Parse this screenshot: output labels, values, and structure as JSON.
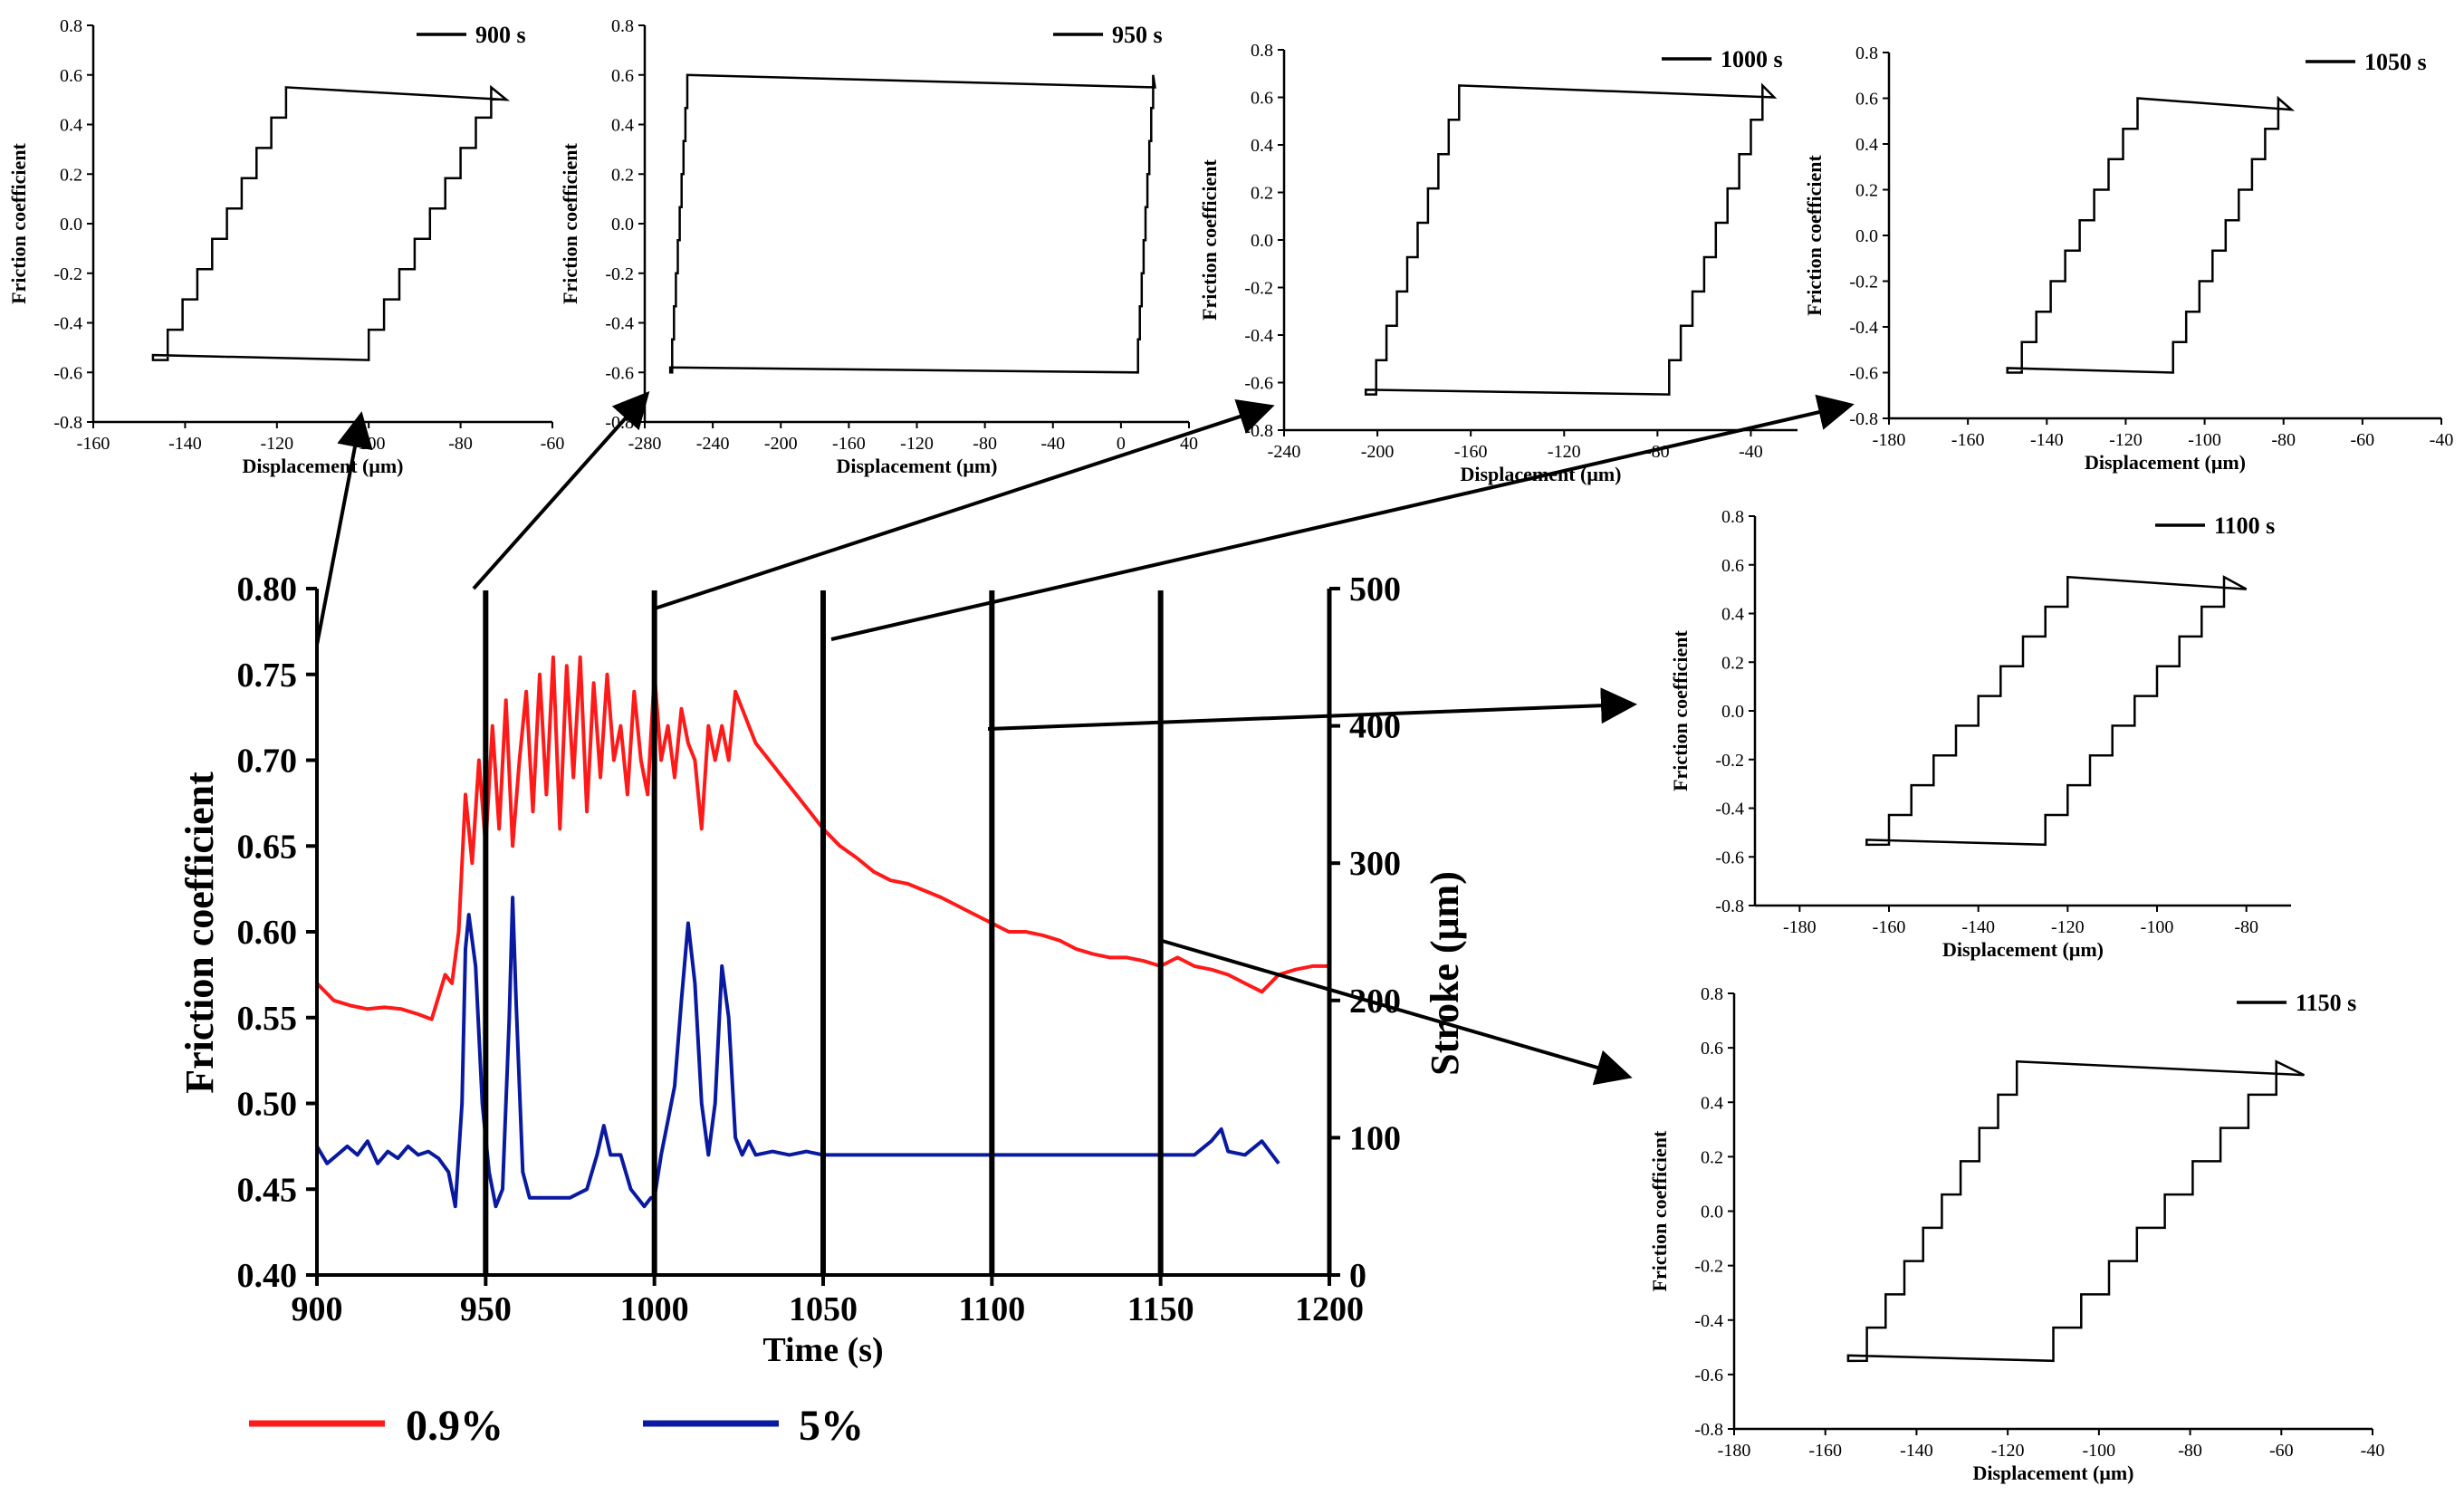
{
  "colors": {
    "series_09": "#ff1a1a",
    "series_5": "#0a1aa0",
    "axis": "#000000",
    "loop": "#000000"
  },
  "legend": [
    {
      "label": "0.9%",
      "color": "#ff1a1a"
    },
    {
      "label": "5%",
      "color": "#0a1aa0"
    }
  ],
  "chart_data": [
    {
      "type": "line",
      "id": "main",
      "title": "",
      "xlabel": "Time (s)",
      "ylabel": "Friction coefficient",
      "y2label": "Stroke (μm)",
      "xlim": [
        900,
        1200
      ],
      "ylim": [
        0.4,
        0.8
      ],
      "y2lim": [
        0,
        500
      ],
      "xticks": [
        "900",
        "950",
        "1000",
        "1050",
        "1100",
        "1150",
        "1200"
      ],
      "yticks": [
        "0.40",
        "0.45",
        "0.50",
        "0.55",
        "0.60",
        "0.65",
        "0.70",
        "0.75",
        "0.80"
      ],
      "y2ticks": [
        "0",
        "100",
        "200",
        "300",
        "400",
        "500"
      ],
      "markers": [
        950,
        1000,
        1050,
        1100,
        1150
      ],
      "series": [
        {
          "name": "0.9%",
          "color": "#ff1a1a",
          "x": [
            900,
            905,
            910,
            915,
            920,
            925,
            930,
            934,
            936,
            938,
            940,
            942,
            944,
            946,
            948,
            950,
            952,
            954,
            956,
            958,
            960,
            962,
            964,
            966,
            968,
            970,
            972,
            974,
            976,
            978,
            980,
            982,
            984,
            986,
            988,
            990,
            992,
            994,
            996,
            998,
            1000,
            1002,
            1004,
            1006,
            1008,
            1010,
            1012,
            1014,
            1016,
            1018,
            1020,
            1022,
            1024,
            1026,
            1028,
            1030,
            1034,
            1038,
            1042,
            1046,
            1050,
            1055,
            1060,
            1065,
            1070,
            1075,
            1080,
            1085,
            1090,
            1095,
            1100,
            1105,
            1110,
            1115,
            1120,
            1125,
            1130,
            1135,
            1140,
            1145,
            1150,
            1155,
            1160,
            1165,
            1170,
            1175,
            1180,
            1185,
            1190,
            1195,
            1200
          ],
          "y": [
            0.57,
            0.56,
            0.557,
            0.555,
            0.556,
            0.555,
            0.552,
            0.549,
            0.562,
            0.575,
            0.57,
            0.6,
            0.68,
            0.64,
            0.7,
            0.65,
            0.72,
            0.66,
            0.735,
            0.65,
            0.7,
            0.74,
            0.67,
            0.75,
            0.68,
            0.76,
            0.66,
            0.755,
            0.69,
            0.76,
            0.67,
            0.745,
            0.69,
            0.75,
            0.7,
            0.72,
            0.68,
            0.74,
            0.7,
            0.68,
            0.75,
            0.7,
            0.72,
            0.69,
            0.73,
            0.71,
            0.7,
            0.66,
            0.72,
            0.7,
            0.72,
            0.7,
            0.74,
            0.73,
            0.72,
            0.71,
            0.7,
            0.69,
            0.68,
            0.67,
            0.66,
            0.65,
            0.643,
            0.635,
            0.63,
            0.628,
            0.624,
            0.62,
            0.615,
            0.61,
            0.605,
            0.6,
            0.6,
            0.598,
            0.595,
            0.59,
            0.587,
            0.585,
            0.585,
            0.583,
            0.58,
            0.585,
            0.58,
            0.578,
            0.575,
            0.57,
            0.565,
            0.575,
            0.578,
            0.58,
            0.58
          ]
        },
        {
          "name": "5%",
          "color": "#0a1aa0",
          "x": [
            900,
            903,
            906,
            909,
            912,
            915,
            918,
            921,
            924,
            927,
            930,
            933,
            936,
            939,
            941,
            943,
            944,
            945,
            947,
            949,
            951,
            953,
            955,
            957,
            958,
            959,
            961,
            963,
            966,
            970,
            975,
            980,
            983,
            985,
            987,
            990,
            993,
            995,
            997,
            999,
            1000,
            1002,
            1004,
            1006,
            1008,
            1010,
            1012,
            1014,
            1016,
            1018,
            1020,
            1022,
            1024,
            1026,
            1028,
            1030,
            1035,
            1040,
            1045,
            1050,
            1060,
            1070,
            1080,
            1090,
            1100,
            1110,
            1120,
            1130,
            1140,
            1150,
            1160,
            1165,
            1168,
            1170,
            1175,
            1180,
            1185
          ],
          "y": [
            0.475,
            0.465,
            0.47,
            0.475,
            0.47,
            0.478,
            0.465,
            0.472,
            0.468,
            0.475,
            0.47,
            0.472,
            0.468,
            0.46,
            0.44,
            0.5,
            0.59,
            0.61,
            0.58,
            0.5,
            0.46,
            0.44,
            0.45,
            0.55,
            0.62,
            0.56,
            0.46,
            0.445,
            0.445,
            0.445,
            0.445,
            0.45,
            0.47,
            0.487,
            0.47,
            0.47,
            0.45,
            0.445,
            0.44,
            0.445,
            0.445,
            0.47,
            0.49,
            0.51,
            0.56,
            0.605,
            0.57,
            0.5,
            0.47,
            0.5,
            0.58,
            0.55,
            0.48,
            0.47,
            0.478,
            0.47,
            0.472,
            0.47,
            0.472,
            0.47,
            0.47,
            0.47,
            0.47,
            0.47,
            0.47,
            0.47,
            0.47,
            0.47,
            0.47,
            0.47,
            0.47,
            0.478,
            0.485,
            0.472,
            0.47,
            0.478,
            0.465
          ]
        }
      ]
    },
    {
      "type": "line",
      "id": "loop900",
      "legend": "900 s",
      "xlabel": "Displacement (μm)",
      "ylabel": "Friction coefficient",
      "xlim": [
        -160,
        -60
      ],
      "ylim": [
        -0.8,
        0.8
      ],
      "xticks": [
        "-160",
        "-140",
        "-120",
        "-100",
        "-80",
        "-60"
      ],
      "yticks": [
        "-0.8",
        "-0.6",
        "-0.4",
        "-0.2",
        "0.0",
        "0.2",
        "0.4",
        "0.6",
        "0.8"
      ],
      "loop": {
        "x_left_bottom": -147,
        "x_left_top": -118,
        "x_right_top": -70,
        "x_right_bottom": -100,
        "y_top": 0.55,
        "y_bottom": -0.55
      }
    },
    {
      "type": "line",
      "id": "loop950",
      "legend": "950 s",
      "xlabel": "Displacement (μm)",
      "ylabel": "Friction coefficient",
      "xlim": [
        -280,
        40
      ],
      "ylim": [
        -0.8,
        0.8
      ],
      "xticks": [
        "-280",
        "-240",
        "-200",
        "-160",
        "-120",
        "-80",
        "-40",
        "0",
        "40"
      ],
      "yticks": [
        "-0.8",
        "-0.6",
        "-0.4",
        "-0.2",
        "0.0",
        "0.2",
        "0.4",
        "0.6",
        "0.8"
      ],
      "loop": {
        "x_left_bottom": -265,
        "x_left_top": -255,
        "x_right_top": 20,
        "x_right_bottom": 10,
        "y_top": 0.6,
        "y_bottom": -0.6
      }
    },
    {
      "type": "line",
      "id": "loop1000",
      "legend": "1000 s",
      "xlabel": "Displacement (μm)",
      "ylabel": "Friction coefficient",
      "xlim": [
        -240,
        -20
      ],
      "ylim": [
        -0.8,
        0.8
      ],
      "xticks": [
        "-240",
        "-200",
        "-160",
        "-120",
        "-80",
        "-40"
      ],
      "yticks": [
        "-0.8",
        "-0.6",
        "-0.4",
        "-0.2",
        "0.0",
        "0.2",
        "0.4",
        "0.6",
        "0.8"
      ],
      "loop": {
        "x_left_bottom": -205,
        "x_left_top": -165,
        "x_right_top": -30,
        "x_right_bottom": -75,
        "y_top": 0.65,
        "y_bottom": -0.65
      }
    },
    {
      "type": "line",
      "id": "loop1050",
      "legend": "1050 s",
      "xlabel": "Displacement (μm)",
      "ylabel": "Friction coefficient",
      "xlim": [
        -180,
        -40
      ],
      "ylim": [
        -0.8,
        0.8
      ],
      "xticks": [
        "-180",
        "-160",
        "-140",
        "-120",
        "-100",
        "-80",
        "-60",
        "-40"
      ],
      "yticks": [
        "-0.8",
        "-0.6",
        "-0.4",
        "-0.2",
        "0.0",
        "0.2",
        "0.4",
        "0.6",
        "0.8"
      ],
      "loop": {
        "x_left_bottom": -150,
        "x_left_top": -117,
        "x_right_top": -78,
        "x_right_bottom": -108,
        "y_top": 0.6,
        "y_bottom": -0.6
      }
    },
    {
      "type": "line",
      "id": "loop1100",
      "legend": "1100 s",
      "xlabel": "Displacement (μm)",
      "ylabel": "Friction coefficient",
      "xlim": [
        -190,
        -70
      ],
      "ylim": [
        -0.8,
        0.8
      ],
      "xticks": [
        "-180",
        "-160",
        "-140",
        "-120",
        "-100",
        "-80"
      ],
      "yticks": [
        "-0.8",
        "-0.6",
        "-0.4",
        "-0.2",
        "0.0",
        "0.2",
        "0.4",
        "0.6",
        "0.8"
      ],
      "loop": {
        "x_left_bottom": -165,
        "x_left_top": -120,
        "x_right_top": -80,
        "x_right_bottom": -125,
        "y_top": 0.55,
        "y_bottom": -0.55
      }
    },
    {
      "type": "line",
      "id": "loop1150",
      "legend": "1150 s",
      "xlabel": "Displacement (μm)",
      "ylabel": "Friction coefficient",
      "xlim": [
        -180,
        -40
      ],
      "ylim": [
        -0.8,
        0.8
      ],
      "xticks": [
        "-180",
        "-160",
        "-140",
        "-120",
        "-100",
        "-80",
        "-60",
        "-40"
      ],
      "yticks": [
        "-0.8",
        "-0.6",
        "-0.4",
        "-0.2",
        "0.0",
        "0.2",
        "0.4",
        "0.6",
        "0.8"
      ],
      "loop": {
        "x_left_bottom": -155,
        "x_left_top": -118,
        "x_right_top": -55,
        "x_right_bottom": -110,
        "y_top": 0.55,
        "y_bottom": -0.55
      }
    }
  ]
}
